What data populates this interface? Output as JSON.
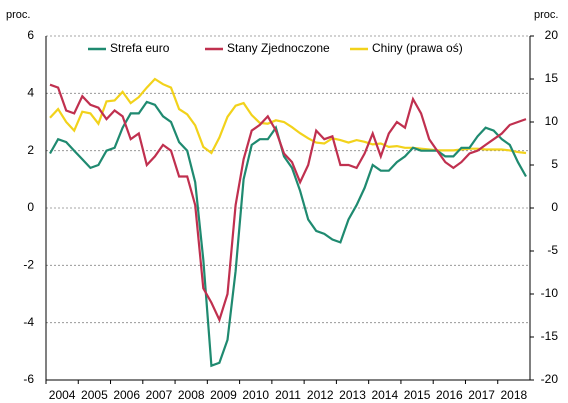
{
  "chart_data": {
    "type": "line",
    "y_label": "proc.",
    "y2_label": "proc.",
    "categories": [
      "2004",
      null,
      null,
      null,
      "2005",
      null,
      null,
      null,
      "2006",
      null,
      null,
      null,
      "2007",
      null,
      null,
      null,
      "2008",
      null,
      null,
      null,
      "2009",
      null,
      null,
      null,
      "2010",
      null,
      null,
      null,
      "2011",
      null,
      null,
      null,
      "2012",
      null,
      null,
      null,
      "2013",
      null,
      null,
      null,
      "2014",
      null,
      null,
      null,
      "2015",
      null,
      null,
      null,
      "2016",
      null,
      null,
      null,
      "2017",
      null,
      null,
      null,
      "2018",
      null,
      null,
      null
    ],
    "series": [
      {
        "name": "Strefa euro",
        "color": "#1f8a70",
        "values": [
          1.9,
          2.4,
          2.3,
          2.0,
          1.7,
          1.4,
          1.5,
          2.0,
          2.1,
          2.8,
          3.3,
          3.3,
          3.7,
          3.6,
          3.2,
          3.0,
          2.3,
          2.0,
          0.9,
          -1.8,
          -5.5,
          -5.4,
          -4.6,
          -2.2,
          1.0,
          2.2,
          2.4,
          2.4,
          2.8,
          1.8,
          1.4,
          0.6,
          -0.4,
          -0.8,
          -0.9,
          -1.1,
          -1.2,
          -0.4,
          0.1,
          0.7,
          1.5,
          1.3,
          1.3,
          1.6,
          1.8,
          2.1,
          2.0,
          2.0,
          2.0,
          1.8,
          1.8,
          2.1,
          2.1,
          2.5,
          2.8,
          2.7,
          2.4,
          2.2,
          1.6,
          1.1
        ]
      },
      {
        "name": "Stany Zjednoczone",
        "color": "#c0304f",
        "values": [
          4.3,
          4.2,
          3.4,
          3.3,
          3.9,
          3.6,
          3.5,
          3.1,
          3.4,
          3.2,
          2.4,
          2.6,
          1.5,
          1.8,
          2.2,
          2.0,
          1.1,
          1.1,
          0.1,
          -2.8,
          -3.3,
          -3.9,
          -3.0,
          0.1,
          1.7,
          2.7,
          2.9,
          3.2,
          2.7,
          1.9,
          1.6,
          0.9,
          1.5,
          2.7,
          2.4,
          2.5,
          1.5,
          1.5,
          1.4,
          1.9,
          2.6,
          1.8,
          2.6,
          3.0,
          2.8,
          3.8,
          3.3,
          2.4,
          2.0,
          1.6,
          1.4,
          1.6,
          1.9,
          2.0,
          2.2,
          2.4,
          2.6,
          2.9,
          3.0,
          3.1
        ]
      },
      {
        "name": "Chiny (prawa oś)",
        "color": "#f2d21b",
        "axis": "y2",
        "values": [
          10.5,
          11.5,
          10.0,
          9.0,
          11.2,
          11.0,
          9.8,
          12.4,
          12.5,
          13.5,
          12.2,
          12.9,
          14.0,
          15.0,
          14.4,
          14.0,
          11.5,
          10.9,
          9.6,
          7.1,
          6.4,
          8.2,
          10.6,
          11.9,
          12.2,
          10.8,
          9.9,
          9.8,
          10.2,
          10.0,
          9.4,
          8.7,
          8.1,
          7.6,
          7.5,
          8.1,
          7.9,
          7.6,
          7.9,
          7.7,
          7.4,
          7.5,
          7.1,
          7.2,
          7.0,
          7.0,
          6.9,
          6.8,
          6.7,
          6.7,
          6.7,
          6.8,
          6.9,
          6.9,
          6.8,
          6.8,
          6.8,
          6.7,
          6.5,
          6.4
        ]
      }
    ],
    "ylim": [
      -6,
      6
    ],
    "yticks": [
      -6,
      -4,
      -2,
      0,
      2,
      4,
      6
    ],
    "y2lim": [
      -20,
      20
    ],
    "y2ticks": [
      -20,
      -15,
      -10,
      -5,
      0,
      5,
      10,
      15,
      20
    ],
    "grid": true,
    "legend": "top"
  }
}
